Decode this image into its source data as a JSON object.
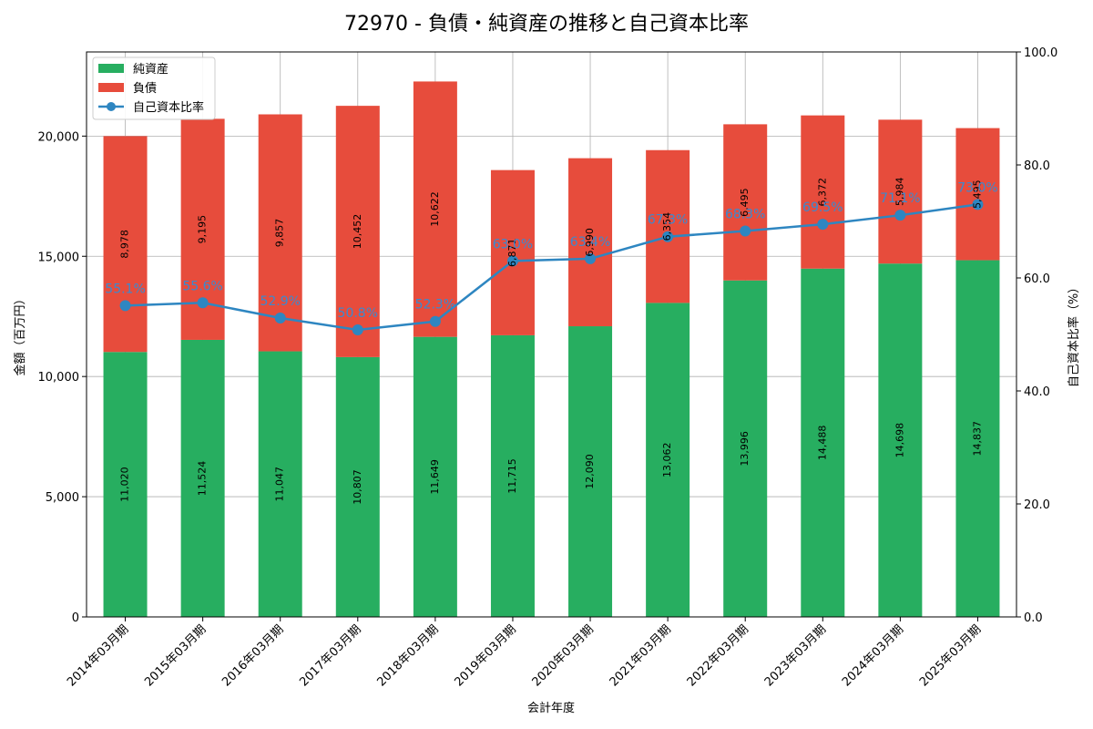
{
  "chart_data": {
    "type": "bar",
    "title": "72970 - 負債・純資産の推移と自己資本比率",
    "xlabel": "会計年度",
    "ylabel_left": "金額（百万円）",
    "ylabel_right": "自己資本比率（%）",
    "ylim_left": [
      0,
      23500
    ],
    "ylim_right": [
      0,
      100
    ],
    "yticks_left": [
      "0",
      "5,000",
      "10,000",
      "15,000",
      "20,000"
    ],
    "yticks_right": [
      "0.0",
      "20.0",
      "40.0",
      "60.0",
      "80.0",
      "100.0"
    ],
    "grid": true,
    "legend_position": "top-left",
    "categories": [
      "2014年03月期",
      "2015年03月期",
      "2016年03月期",
      "2017年03月期",
      "2018年03月期",
      "2019年03月期",
      "2020年03月期",
      "2021年03月期",
      "2022年03月期",
      "2023年03月期",
      "2024年03月期",
      "2025年03月期"
    ],
    "series": [
      {
        "name": "純資産",
        "kind": "stacked-bar",
        "color": "#27ae60",
        "values": [
          11020,
          11524,
          11047,
          10807,
          11649,
          11715,
          12090,
          13062,
          13996,
          14488,
          14698,
          14837
        ],
        "labels": [
          "11,020",
          "11,524",
          "11,047",
          "10,807",
          "11,649",
          "11,715",
          "12,090",
          "13,062",
          "13,996",
          "14,488",
          "14,698",
          "14,837"
        ]
      },
      {
        "name": "負債",
        "kind": "stacked-bar",
        "color": "#e74c3c",
        "values": [
          8978,
          9195,
          9857,
          10452,
          10622,
          6871,
          6990,
          6354,
          6495,
          6372,
          5984,
          5495
        ],
        "labels": [
          "8,978",
          "9,195",
          "9,857",
          "10,452",
          "10,622",
          "6,871",
          "6,990",
          "6,354",
          "6,495",
          "6,372",
          "5,984",
          "5,495"
        ]
      },
      {
        "name": "自己資本比率",
        "kind": "line",
        "axis": "right",
        "color": "#2e86c1",
        "values": [
          55.1,
          55.6,
          52.9,
          50.8,
          52.3,
          63.0,
          63.4,
          67.3,
          68.3,
          69.5,
          71.1,
          73.0
        ],
        "labels": [
          "55.1%",
          "55.6%",
          "52.9%",
          "50.8%",
          "52.3%",
          "63.0%",
          "63.4%",
          "67.3%",
          "68.3%",
          "69.5%",
          "71.1%",
          "73.0%"
        ]
      }
    ]
  }
}
